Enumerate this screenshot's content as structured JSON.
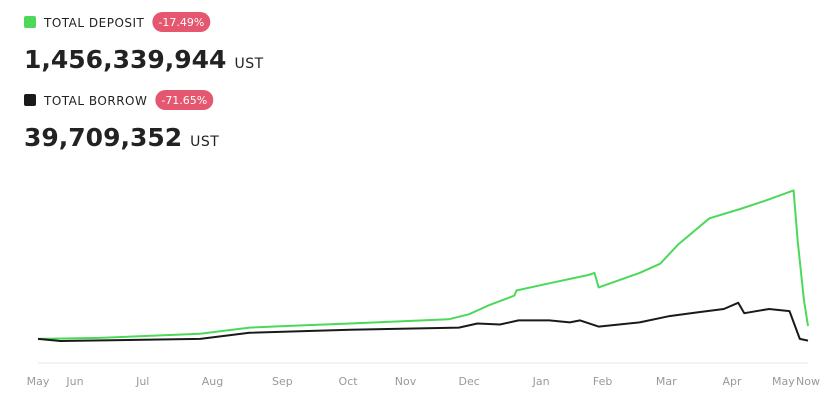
{
  "chart_data": {
    "type": "line",
    "unit": "UST",
    "series": [
      {
        "name": "TOTAL DEPOSIT",
        "change": "-17.49%",
        "total": "1,456,339,944",
        "color": "#4cd95a",
        "x": [
          0,
          30,
          79,
          103,
          127,
          152,
          176,
          200,
          210,
          220,
          232,
          233,
          249,
          268,
          271,
          273,
          293,
          303,
          312,
          327,
          342,
          354,
          368,
          370,
          373,
          375
        ],
        "values": [
          200000000,
          300000000,
          700000000,
          1300000000,
          1500000000,
          1700000000,
          1900000000,
          2100000000,
          2600000000,
          3500000000,
          4400000000,
          4900000000,
          5600000000,
          6400000000,
          6600000000,
          5200000000,
          6600000000,
          7500000000,
          9400000000,
          11900000000,
          12800000000,
          13600000000,
          14600000000,
          9700000000,
          4000000000,
          1456339944
        ]
      },
      {
        "name": "TOTAL BORROW",
        "change": "-71.65%",
        "total": "39,709,352",
        "color": "#1a1a1a",
        "x": [
          0,
          11,
          79,
          103,
          152,
          205,
          214,
          225,
          234,
          249,
          259,
          264,
          273,
          293,
          307,
          322,
          334,
          341,
          344,
          356,
          366,
          371,
          375
        ],
        "values": [
          200000000,
          0,
          200000000,
          800000000,
          1100000000,
          1300000000,
          1700000000,
          1600000000,
          2000000000,
          2000000000,
          1800000000,
          2000000000,
          1400000000,
          1800000000,
          2400000000,
          2800000000,
          3100000000,
          3700000000,
          2700000000,
          3100000000,
          2900000000,
          200000000,
          39709352
        ]
      }
    ],
    "xlim": [
      0,
      375
    ],
    "ylim": [
      0,
      16000000000
    ],
    "xticks": [
      {
        "value": 0,
        "label": "May"
      },
      {
        "value": 18,
        "label": "Jun"
      },
      {
        "value": 51,
        "label": "Jul"
      },
      {
        "value": 85,
        "label": "Aug"
      },
      {
        "value": 119,
        "label": "Sep"
      },
      {
        "value": 151,
        "label": "Oct"
      },
      {
        "value": 179,
        "label": "Nov"
      },
      {
        "value": 210,
        "label": "Dec"
      },
      {
        "value": 245,
        "label": "Jan"
      },
      {
        "value": 275,
        "label": "Feb"
      },
      {
        "value": 306,
        "label": "Mar"
      },
      {
        "value": 338,
        "label": "Apr"
      },
      {
        "value": 363,
        "label": "May"
      },
      {
        "value": 375,
        "label": "Now"
      }
    ],
    "badge_color": "#e5566f"
  }
}
